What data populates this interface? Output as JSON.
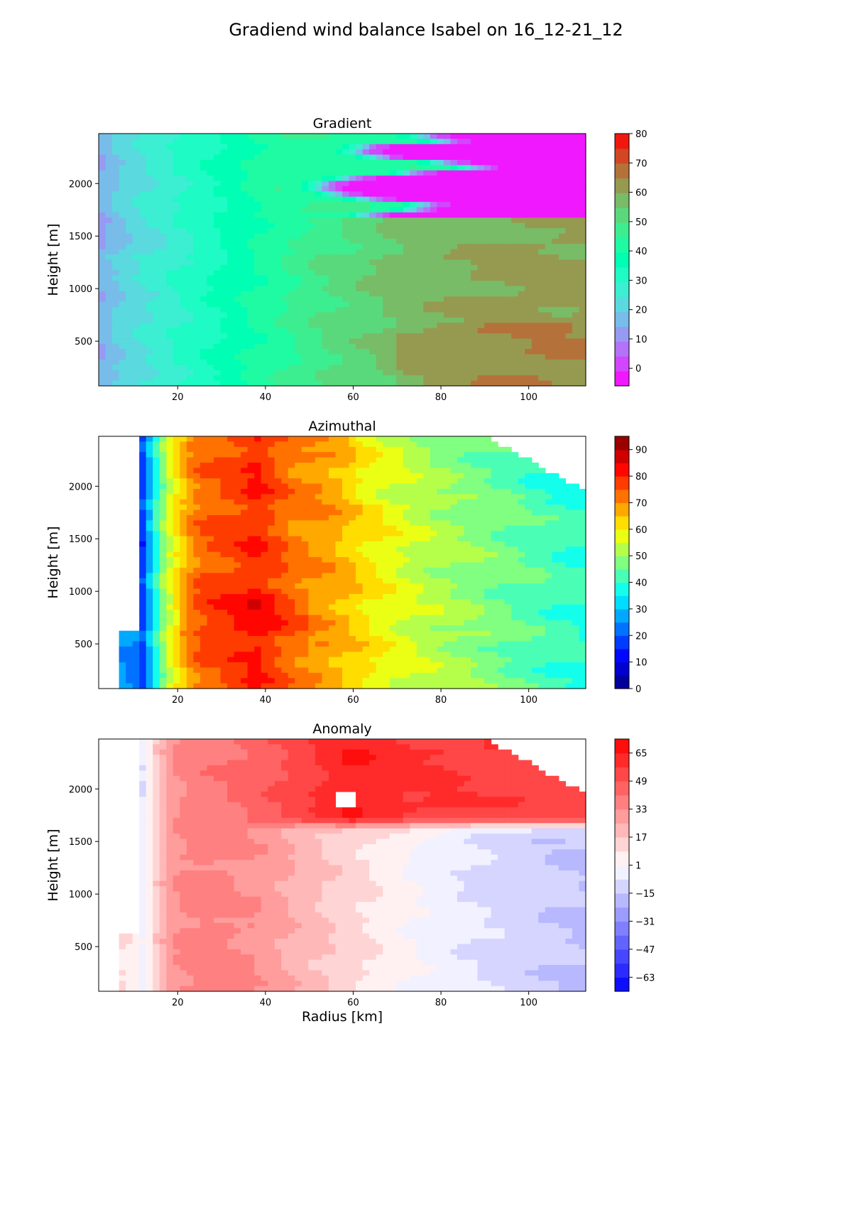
{
  "figure": {
    "title": "Gradiend wind balance Isabel on 16_12-21_12"
  },
  "chart_data": [
    {
      "type": "heatmap",
      "title": "Gradient",
      "xlabel": "",
      "ylabel": "Height [m]",
      "xlim": [
        2,
        113
      ],
      "ylim": [
        75,
        2475
      ],
      "x_ticks": [
        20,
        40,
        60,
        80,
        100
      ],
      "y_ticks": [
        500,
        1000,
        1500,
        2000
      ],
      "colorbar": {
        "levels": [
          -6,
          0,
          5,
          10,
          15,
          20,
          25,
          30,
          35,
          40,
          45,
          50,
          55,
          60,
          65,
          70,
          75,
          80
        ],
        "ticks": [
          0,
          10,
          20,
          30,
          40,
          50,
          60,
          70,
          80
        ],
        "colormap": "rainbow"
      },
      "x": [
        2,
        5,
        8,
        12,
        16,
        20,
        25,
        30,
        35,
        40,
        45,
        50,
        55,
        60,
        65,
        70,
        75,
        80,
        85,
        90,
        95,
        100,
        105,
        113
      ],
      "y": [
        75,
        200,
        350,
        500,
        650,
        800,
        950,
        1100,
        1250,
        1400,
        1550,
        1650,
        1700,
        1800,
        1900,
        2000,
        2100,
        2200,
        2300,
        2400,
        2475
      ],
      "profile": [
        15,
        19,
        22,
        25,
        27,
        30,
        33,
        36,
        39,
        42,
        45,
        48,
        51,
        53,
        55,
        57,
        58,
        59,
        60,
        61,
        61,
        62,
        62,
        62
      ],
      "upper_layer_outer_value": -3
    },
    {
      "type": "heatmap",
      "title": "Azimuthal",
      "xlabel": "",
      "ylabel": "Height [m]",
      "xlim": [
        2,
        113
      ],
      "ylim": [
        75,
        2475
      ],
      "x_ticks": [
        20,
        40,
        60,
        80,
        100
      ],
      "y_ticks": [
        500,
        1000,
        1500,
        2000
      ],
      "colorbar": {
        "levels": [
          0,
          5,
          10,
          15,
          20,
          25,
          30,
          35,
          40,
          45,
          50,
          55,
          60,
          65,
          70,
          75,
          80,
          85,
          90,
          95
        ],
        "ticks": [
          0,
          10,
          20,
          30,
          40,
          50,
          60,
          70,
          80,
          90
        ],
        "colormap": "jet"
      },
      "x": [
        7,
        10,
        12,
        14,
        16,
        18,
        20,
        23,
        26,
        30,
        35,
        38,
        42,
        46,
        50,
        55,
        60,
        65,
        70,
        75,
        80,
        85,
        90,
        95,
        100,
        105,
        113
      ],
      "y": [
        75,
        200,
        350,
        500,
        650,
        800,
        950,
        1100,
        1250,
        1400,
        1550,
        1700,
        1850,
        2000,
        2150,
        2300,
        2475
      ],
      "profile": [
        27,
        25,
        18,
        32,
        45,
        55,
        62,
        70,
        74,
        75,
        78,
        80,
        76,
        72,
        70,
        68,
        64,
        60,
        57,
        54,
        52,
        50,
        48,
        46,
        44,
        42,
        40
      ],
      "no_data_regions": "x < 12 above 600 m; x < 7 below 600 m; upper-right corner above the boundary from (90, 2475) to (113, 1960)"
    },
    {
      "type": "heatmap",
      "title": "Anomaly",
      "xlabel": "Radius [km]",
      "ylabel": "Height [m]",
      "xlim": [
        2,
        113
      ],
      "ylim": [
        75,
        2475
      ],
      "x_ticks": [
        20,
        40,
        60,
        80,
        100
      ],
      "y_ticks": [
        500,
        1000,
        1500,
        2000
      ],
      "colorbar": {
        "levels": [
          -71,
          -63,
          -55,
          -47,
          -39,
          -31,
          -23,
          -15,
          -7,
          1,
          9,
          17,
          25,
          33,
          41,
          49,
          57,
          65,
          73
        ],
        "ticks": [
          65,
          49,
          33,
          17,
          1,
          -15,
          -31,
          -47,
          -63
        ],
        "tick_labels": [
          "65",
          "49",
          "33",
          "17",
          "1",
          "−15",
          "−31",
          "−47",
          "−63"
        ],
        "colormap": "bwr"
      },
      "x": [
        7,
        10,
        12,
        14,
        16,
        18,
        20,
        23,
        26,
        30,
        35,
        38,
        42,
        46,
        50,
        55,
        60,
        65,
        70,
        75,
        80,
        85,
        90,
        95,
        100,
        105,
        113
      ],
      "y": [
        75,
        200,
        350,
        500,
        650,
        800,
        950,
        1100,
        1250,
        1400,
        1550,
        1650,
        1700,
        1800,
        1900,
        2000,
        2100,
        2200,
        2300,
        2400,
        2475
      ],
      "lower_layer_profile": [
        10,
        5,
        -2,
        8,
        20,
        28,
        33,
        35,
        36,
        35,
        33,
        32,
        28,
        24,
        20,
        16,
        12,
        8,
        4,
        0,
        -3,
        -6,
        -8,
        -10,
        -12,
        -14,
        -16
      ],
      "upper_layer_profile": [
        6,
        3,
        -6,
        8,
        20,
        28,
        33,
        36,
        38,
        40,
        43,
        45,
        48,
        52,
        55,
        60,
        65,
        62,
        60,
        58,
        58,
        56,
        55,
        55,
        55,
        54,
        54
      ],
      "no_data_regions": "x < 12 above 600 m; x < 7 below 600 m; small gap near (58, 1900); upper-right corner above the boundary from (90, 2475) to (113, 1960)"
    }
  ]
}
